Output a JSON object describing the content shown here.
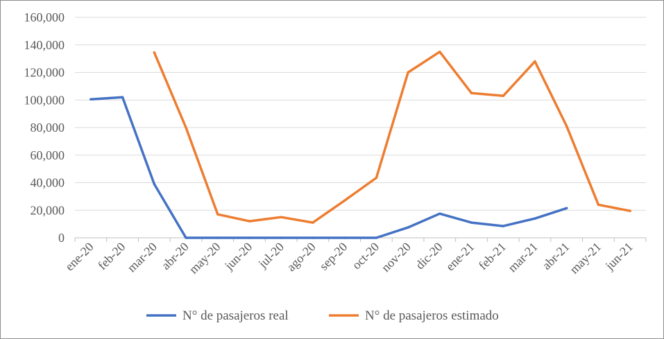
{
  "chart_data": {
    "type": "line",
    "categories": [
      "ene-20",
      "feb-20",
      "mar-20",
      "abr-20",
      "may-20",
      "jun-20",
      "jul-20",
      "ago-20",
      "sep-20",
      "oct-20",
      "nov-20",
      "dic-20",
      "ene-21",
      "feb-21",
      "mar-21",
      "abr-21",
      "may-21",
      "jun-21"
    ],
    "series": [
      {
        "name": "N° de pasajeros real",
        "color": "#4472c4",
        "values": [
          100500,
          102000,
          39000,
          0,
          0,
          0,
          0,
          0,
          0,
          0,
          7500,
          17500,
          11000,
          8500,
          14000,
          21500,
          null,
          null
        ]
      },
      {
        "name": "N° de pasajeros estimado",
        "color": "#ed7d31",
        "values": [
          null,
          null,
          134500,
          80000,
          17000,
          12000,
          15000,
          11000,
          27000,
          43500,
          120000,
          135000,
          105000,
          103000,
          128000,
          81000,
          24000,
          19500
        ]
      }
    ],
    "yticks": [
      "0",
      "20,000",
      "40,000",
      "60,000",
      "80,000",
      "100,000",
      "120,000",
      "140,000",
      "160,000"
    ],
    "ylim": [
      0,
      160000
    ],
    "grid": true,
    "legend": "bottom"
  }
}
